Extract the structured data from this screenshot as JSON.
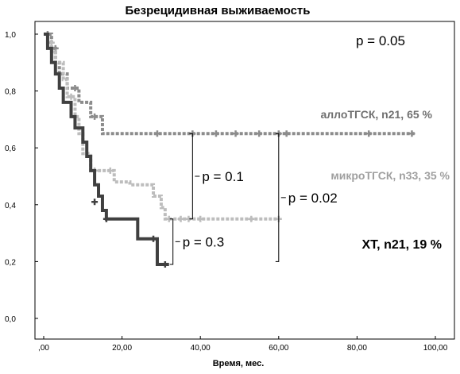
{
  "chart_data": {
    "type": "line",
    "subtype": "kaplan-meier step curves",
    "title": "Безрецидивная выживаемость",
    "xlabel": "Время, мес.",
    "ylabel": "",
    "xlim": [
      0,
      100
    ],
    "ylim": [
      0,
      1.0
    ],
    "x_ticks": [
      0,
      20,
      40,
      60,
      80,
      100
    ],
    "x_tick_labels": [
      ",00",
      "20,00",
      "40,00",
      "60,00",
      "80,00",
      "100,00"
    ],
    "y_ticks": [
      0,
      0.2,
      0.4,
      0.6,
      0.8,
      1.0
    ],
    "y_tick_labels": [
      "0,0",
      "0,2",
      "0,4",
      "0,6",
      "0,8",
      "1,0"
    ],
    "grid": false,
    "overall_p_label": "p = 0.05",
    "series": [
      {
        "name": "аллоТГСК, n21, 65 %",
        "color": "#8c8c8c",
        "dash": "dotted",
        "steps": [
          [
            0,
            1.0
          ],
          [
            2,
            0.95
          ],
          [
            3,
            0.9
          ],
          [
            4,
            0.86
          ],
          [
            6,
            0.81
          ],
          [
            9,
            0.76
          ],
          [
            12,
            0.71
          ],
          [
            15,
            0.65
          ],
          [
            95,
            0.65
          ]
        ],
        "censored": [
          [
            1,
            1.0
          ],
          [
            3,
            0.95
          ],
          [
            8,
            0.81
          ],
          [
            13,
            0.71
          ],
          [
            29,
            0.65
          ],
          [
            38,
            0.65
          ],
          [
            44,
            0.65
          ],
          [
            49,
            0.65
          ],
          [
            55,
            0.65
          ],
          [
            60,
            0.65
          ],
          [
            62,
            0.65
          ],
          [
            83,
            0.65
          ],
          [
            94,
            0.65
          ]
        ]
      },
      {
        "name": "микроТГСК, n33, 35 %",
        "color": "#bdbdbd",
        "dash": "dotted",
        "steps": [
          [
            0,
            1.0
          ],
          [
            1,
            0.97
          ],
          [
            2,
            0.94
          ],
          [
            3,
            0.9
          ],
          [
            5,
            0.84
          ],
          [
            6,
            0.78
          ],
          [
            8,
            0.71
          ],
          [
            9,
            0.65
          ],
          [
            10,
            0.58
          ],
          [
            12,
            0.52
          ],
          [
            18,
            0.48
          ],
          [
            22,
            0.47
          ],
          [
            28,
            0.43
          ],
          [
            30,
            0.39
          ],
          [
            31,
            0.35
          ],
          [
            60,
            0.35
          ]
        ],
        "censored": [
          [
            2,
            0.97
          ],
          [
            7,
            0.78
          ],
          [
            13,
            0.52
          ],
          [
            17,
            0.52
          ],
          [
            32,
            0.35
          ],
          [
            35,
            0.35
          ],
          [
            37,
            0.35
          ],
          [
            40,
            0.35
          ],
          [
            53,
            0.35
          ],
          [
            60,
            0.35
          ]
        ]
      },
      {
        "name": "XT, n21, 19 %",
        "color": "#404040",
        "dash": "solid",
        "steps": [
          [
            0,
            1.0
          ],
          [
            1,
            0.95
          ],
          [
            2,
            0.9
          ],
          [
            3,
            0.86
          ],
          [
            4,
            0.81
          ],
          [
            5,
            0.76
          ],
          [
            7,
            0.71
          ],
          [
            8,
            0.67
          ],
          [
            10,
            0.62
          ],
          [
            11,
            0.57
          ],
          [
            12,
            0.52
          ],
          [
            13,
            0.47
          ],
          [
            14,
            0.43
          ],
          [
            15,
            0.38
          ],
          [
            16,
            0.35
          ],
          [
            24,
            0.28
          ],
          [
            29,
            0.19
          ],
          [
            32,
            0.19
          ]
        ],
        "censored": [
          [
            13,
            0.41
          ],
          [
            16,
            0.35
          ],
          [
            28,
            0.28
          ],
          [
            31,
            0.19
          ]
        ]
      }
    ],
    "comparisons": [
      {
        "label": "p = 0.1",
        "x": 38,
        "from": 0.65,
        "to": 0.35
      },
      {
        "label": "p = 0.02",
        "x": 60,
        "from": 0.65,
        "to": 0.2
      },
      {
        "label": "p = 0.3",
        "x": 33,
        "from": 0.35,
        "to": 0.19
      }
    ]
  }
}
